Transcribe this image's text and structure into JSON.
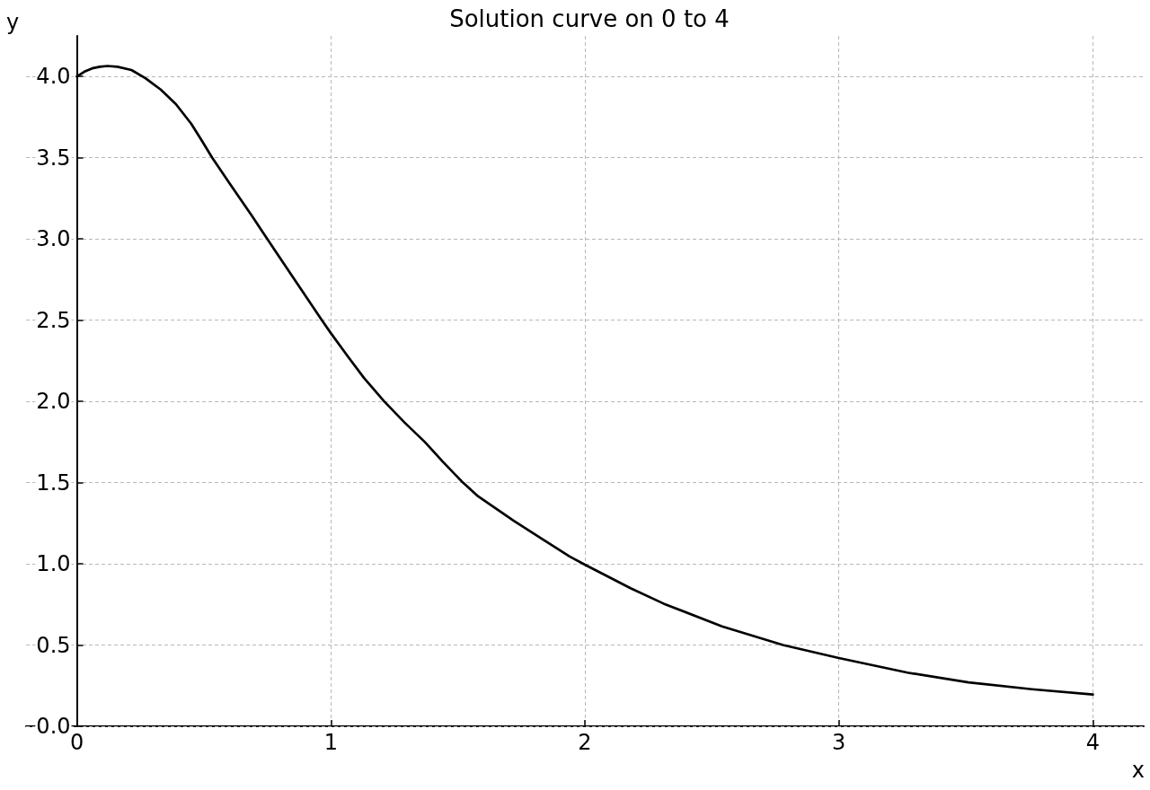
{
  "chart_data": {
    "type": "line",
    "title": "Solution curve on 0 to 4",
    "xlabel": "x",
    "ylabel": "y",
    "x": [
      0,
      0.03,
      0.06,
      0.09,
      0.12,
      0.16,
      0.215,
      0.27,
      0.33,
      0.39,
      0.45,
      0.49,
      0.533,
      0.6,
      0.69,
      0.79,
      0.9,
      0.96,
      1.0,
      1.07,
      1.13,
      1.21,
      1.29,
      1.37,
      1.44,
      1.52,
      1.58,
      1.72,
      1.84,
      1.94,
      2.0,
      2.18,
      2.31,
      2.54,
      2.78,
      3.0,
      3.27,
      3.51,
      3.76,
      4.0
    ],
    "values": [
      4.0,
      4.03,
      4.05,
      4.06,
      4.065,
      4.06,
      4.04,
      3.99,
      3.92,
      3.83,
      3.71,
      3.61,
      3.5,
      3.345,
      3.14,
      2.905,
      2.65,
      2.51,
      2.42,
      2.27,
      2.145,
      2.0,
      1.87,
      1.75,
      1.63,
      1.5,
      1.415,
      1.265,
      1.145,
      1.045,
      0.995,
      0.85,
      0.755,
      0.615,
      0.5,
      0.42,
      0.33,
      0.27,
      0.228,
      0.195
    ],
    "color": "#000000",
    "xlim": [
      -0.2,
      4.2
    ],
    "xticks": [
      0,
      1,
      2,
      3,
      4
    ],
    "ylim": [
      0,
      4.25
    ],
    "yticks": [
      {
        "value": 0,
        "label": "0.0"
      },
      {
        "value": 0.5,
        "label": "0.5"
      },
      {
        "value": 1,
        "label": "1.0"
      },
      {
        "value": 1.5,
        "label": "1.5"
      },
      {
        "value": 2,
        "label": "2.0"
      },
      {
        "value": 2.5,
        "label": "2.5"
      },
      {
        "value": 3,
        "label": "3.0"
      },
      {
        "value": 3.5,
        "label": "3.5"
      },
      {
        "value": 4,
        "label": "4.0"
      }
    ],
    "grid": true,
    "marker": "none",
    "line_style": "solid"
  }
}
